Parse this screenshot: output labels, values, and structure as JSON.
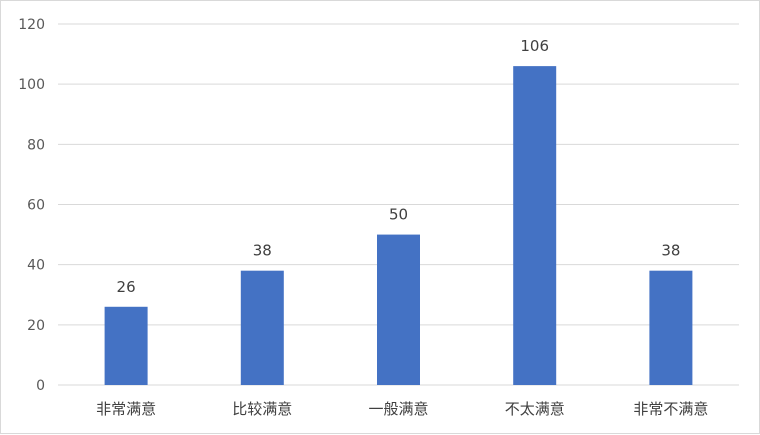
{
  "chart_data": {
    "type": "bar",
    "categories": [
      "非常满意",
      "比较满意",
      "一般满意",
      "不太满意",
      "非常不满意"
    ],
    "values": [
      26,
      38,
      50,
      106,
      38
    ],
    "ylim": [
      0,
      120
    ],
    "yticks": [
      0,
      20,
      40,
      60,
      80,
      100,
      120
    ],
    "grid": true,
    "colors": {
      "bar": "#4472C4",
      "grid": "#d9d9d9"
    }
  }
}
